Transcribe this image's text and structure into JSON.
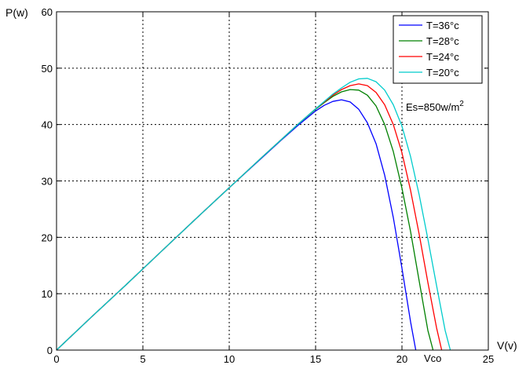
{
  "chart_data": {
    "type": "line",
    "xlabel": "V(v)",
    "ylabel": "P(w)",
    "xlim": [
      0,
      25
    ],
    "ylim": [
      0,
      60
    ],
    "xticks": [
      "0",
      "5",
      "10",
      "15",
      "20",
      "25"
    ],
    "yticks": [
      "0",
      "10",
      "20",
      "30",
      "40",
      "50",
      "60"
    ],
    "grid": true,
    "legend_position": "top-right",
    "annotations": {
      "irradiance_prefix": "Es=850w/m",
      "irradiance_sup": "2",
      "voc_label": "Vco"
    },
    "series": [
      {
        "name": "T=36°c",
        "color": "#0000ff",
        "x": [
          0,
          2,
          4,
          6,
          8,
          10,
          12,
          13,
          14,
          15,
          15.5,
          16,
          16.5,
          17,
          17.5,
          18,
          18.5,
          19,
          19.5,
          20,
          20.5,
          20.8
        ],
        "y": [
          0,
          5.8,
          11.5,
          17.3,
          23.1,
          28.8,
          34.4,
          37.2,
          39.9,
          42.4,
          43.4,
          44.1,
          44.4,
          44.0,
          42.7,
          40.3,
          36.6,
          31.0,
          23.5,
          14.5,
          5.0,
          0
        ]
      },
      {
        "name": "T=28°c",
        "color": "#008000",
        "x": [
          0,
          2,
          4,
          6,
          8,
          10,
          12,
          13,
          14,
          15,
          15.5,
          16,
          16.5,
          17,
          17.5,
          18,
          18.5,
          19,
          19.5,
          20,
          20.5,
          21,
          21.5,
          21.8
        ],
        "y": [
          0,
          5.8,
          11.5,
          17.3,
          23.1,
          28.8,
          34.5,
          37.3,
          40.1,
          42.7,
          43.9,
          45.0,
          45.8,
          46.2,
          46.1,
          45.2,
          43.3,
          40.0,
          35.2,
          28.7,
          21.0,
          12.2,
          3.5,
          0
        ]
      },
      {
        "name": "T=24°c",
        "color": "#ff0000",
        "x": [
          0,
          2,
          4,
          6,
          8,
          10,
          12,
          13,
          14,
          15,
          15.5,
          16,
          16.5,
          17,
          17.5,
          18,
          18.5,
          19,
          19.5,
          20,
          20.5,
          21,
          21.5,
          22,
          22.3
        ],
        "y": [
          0,
          5.8,
          11.5,
          17.3,
          23.1,
          28.8,
          34.5,
          37.3,
          40.1,
          42.8,
          44.0,
          45.2,
          46.2,
          46.9,
          47.2,
          46.9,
          45.7,
          43.5,
          40.0,
          35.0,
          28.3,
          20.5,
          12.0,
          4.0,
          0
        ]
      },
      {
        "name": "T=20°c",
        "color": "#00cccc",
        "x": [
          0,
          2,
          4,
          6,
          8,
          10,
          12,
          13,
          14,
          15,
          15.5,
          16,
          16.5,
          17,
          17.5,
          18,
          18.5,
          19,
          19.5,
          20,
          20.5,
          21,
          21.5,
          22,
          22.5,
          22.8
        ],
        "y": [
          0,
          5.8,
          11.5,
          17.3,
          23.1,
          28.8,
          34.5,
          37.3,
          40.1,
          42.8,
          44.1,
          45.4,
          46.5,
          47.5,
          48.1,
          48.2,
          47.6,
          46.1,
          43.5,
          39.7,
          34.3,
          27.5,
          19.7,
          11.5,
          3.5,
          0
        ]
      }
    ]
  }
}
